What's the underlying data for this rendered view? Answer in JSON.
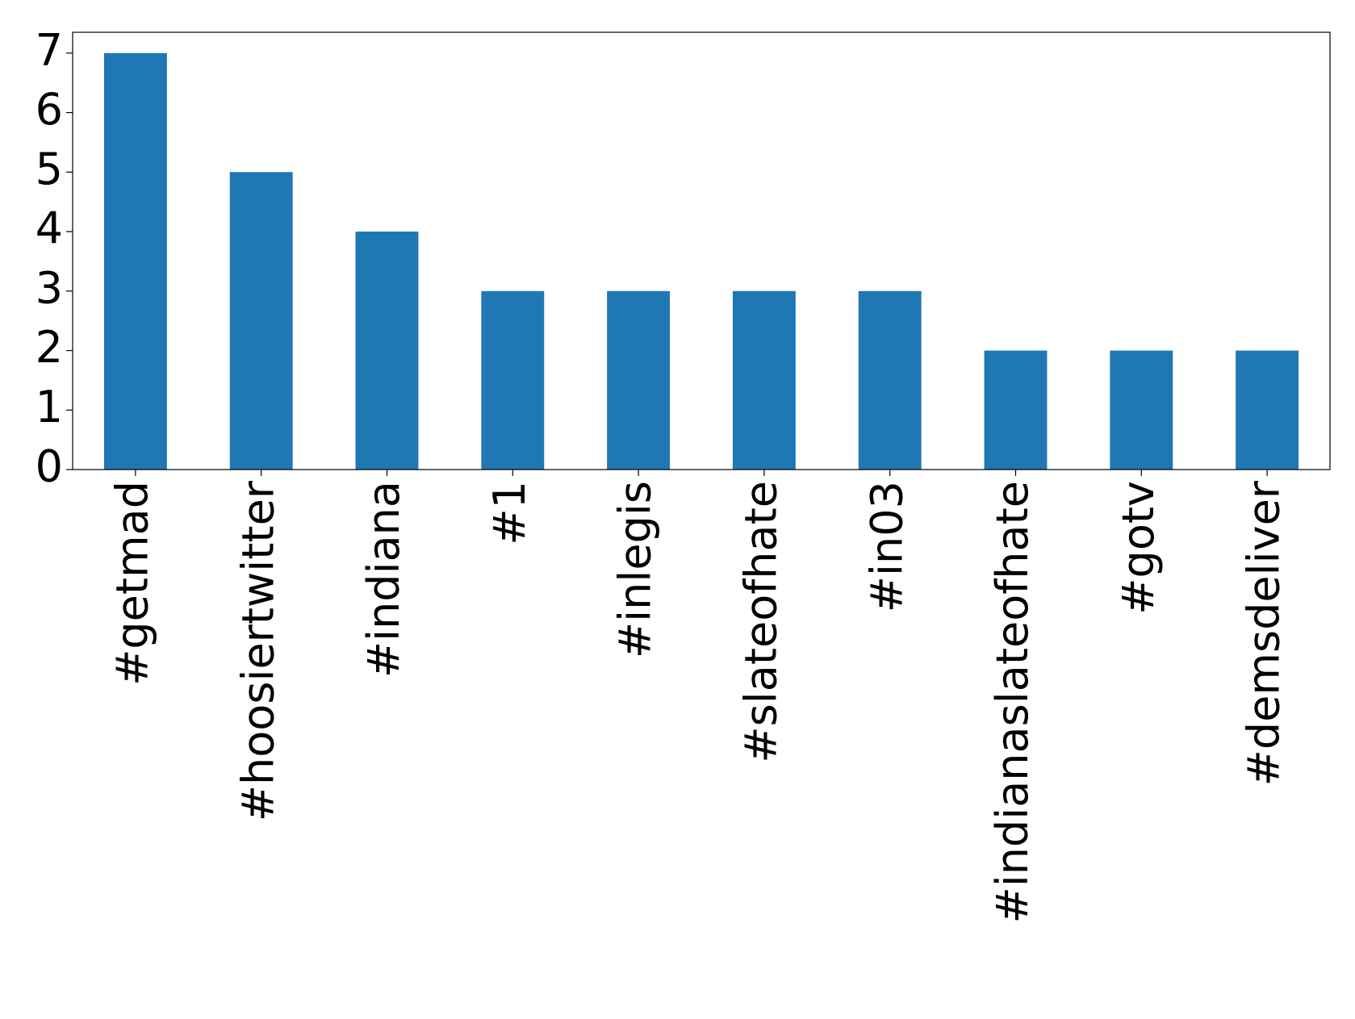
{
  "chart_data": {
    "type": "bar",
    "categories": [
      "#getmad",
      "#hoosiertwitter",
      "#indiana",
      "#1",
      "#inlegis",
      "#slateofhate",
      "#in03",
      "#indianaslateofhate",
      "#gotv",
      "#demsdeliver"
    ],
    "values": [
      7,
      5,
      4,
      3,
      3,
      3,
      3,
      2,
      2,
      2
    ],
    "color": "#1f77b4",
    "ylim": [
      0,
      7.35
    ],
    "yticks": [
      0,
      1,
      2,
      3,
      4,
      5,
      6,
      7
    ],
    "grid": false
  }
}
